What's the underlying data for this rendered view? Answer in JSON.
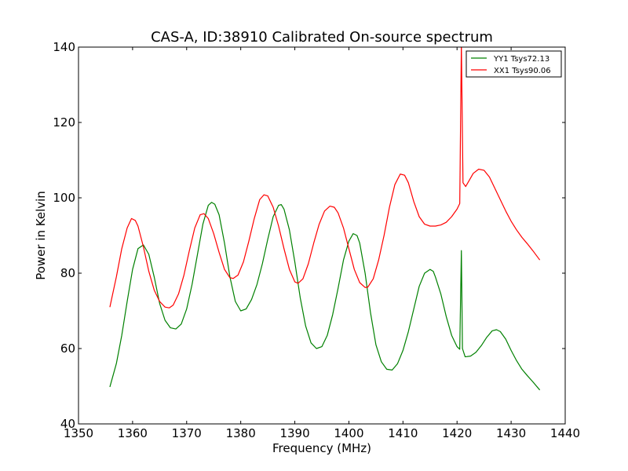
{
  "chart_data": {
    "type": "line",
    "title": "CAS-A, ID:38910 Calibrated On-source spectrum",
    "xlabel": "Frequency (MHz)",
    "ylabel": "Power in Kelvin",
    "xlim": [
      1350,
      1440
    ],
    "ylim": [
      40,
      140
    ],
    "xticks": [
      1350,
      1360,
      1370,
      1380,
      1390,
      1400,
      1410,
      1420,
      1430,
      1440
    ],
    "yticks": [
      40,
      60,
      80,
      100,
      120,
      140
    ],
    "grid": false,
    "legend_position": "top-right",
    "series": [
      {
        "name": "YY1 Tsys72.13",
        "color": "#008000",
        "points": [
          [
            1355.8,
            49.8
          ],
          [
            1357.0,
            56.0
          ],
          [
            1358.0,
            63.5
          ],
          [
            1359.0,
            72.5
          ],
          [
            1360.0,
            81.0
          ],
          [
            1361.0,
            86.5
          ],
          [
            1362.0,
            87.5
          ],
          [
            1363.0,
            85.0
          ],
          [
            1364.0,
            79.0
          ],
          [
            1365.0,
            72.0
          ],
          [
            1366.0,
            67.5
          ],
          [
            1367.0,
            65.5
          ],
          [
            1368.0,
            65.2
          ],
          [
            1369.0,
            66.5
          ],
          [
            1370.0,
            70.5
          ],
          [
            1371.0,
            77.0
          ],
          [
            1372.0,
            85.0
          ],
          [
            1373.0,
            93.0
          ],
          [
            1374.0,
            98.0
          ],
          [
            1374.6,
            98.8
          ],
          [
            1375.2,
            98.3
          ],
          [
            1376.0,
            95.5
          ],
          [
            1377.0,
            88.0
          ],
          [
            1378.0,
            79.0
          ],
          [
            1379.0,
            72.5
          ],
          [
            1380.0,
            70.0
          ],
          [
            1381.0,
            70.5
          ],
          [
            1382.0,
            73.0
          ],
          [
            1383.0,
            77.0
          ],
          [
            1384.0,
            82.5
          ],
          [
            1385.0,
            89.0
          ],
          [
            1386.0,
            95.0
          ],
          [
            1387.0,
            98.0
          ],
          [
            1387.5,
            98.2
          ],
          [
            1388.0,
            97.0
          ],
          [
            1389.0,
            91.5
          ],
          [
            1390.0,
            83.0
          ],
          [
            1391.0,
            73.5
          ],
          [
            1392.0,
            66.0
          ],
          [
            1393.0,
            61.5
          ],
          [
            1394.0,
            60.0
          ],
          [
            1395.0,
            60.5
          ],
          [
            1396.0,
            63.5
          ],
          [
            1397.0,
            69.0
          ],
          [
            1398.0,
            76.0
          ],
          [
            1399.0,
            83.5
          ],
          [
            1400.0,
            88.5
          ],
          [
            1400.8,
            90.5
          ],
          [
            1401.5,
            90.0
          ],
          [
            1402.0,
            88.0
          ],
          [
            1403.0,
            80.0
          ],
          [
            1404.0,
            69.5
          ],
          [
            1405.0,
            61.0
          ],
          [
            1406.0,
            56.5
          ],
          [
            1407.0,
            54.5
          ],
          [
            1408.0,
            54.3
          ],
          [
            1409.0,
            56.0
          ],
          [
            1410.0,
            59.5
          ],
          [
            1411.0,
            64.5
          ],
          [
            1412.0,
            70.5
          ],
          [
            1413.0,
            76.5
          ],
          [
            1414.0,
            80.0
          ],
          [
            1415.0,
            81.0
          ],
          [
            1415.6,
            80.5
          ],
          [
            1416.0,
            79.0
          ],
          [
            1417.0,
            74.5
          ],
          [
            1418.0,
            68.5
          ],
          [
            1419.0,
            63.5
          ],
          [
            1420.0,
            60.5
          ],
          [
            1420.5,
            59.8
          ],
          [
            1420.8,
            86.0
          ],
          [
            1421.0,
            60.0
          ],
          [
            1421.5,
            57.8
          ],
          [
            1422.5,
            58.0
          ],
          [
            1423.5,
            59.0
          ],
          [
            1424.5,
            60.8
          ],
          [
            1425.5,
            63.0
          ],
          [
            1426.5,
            64.7
          ],
          [
            1427.3,
            65.0
          ],
          [
            1428.0,
            64.5
          ],
          [
            1429.0,
            62.5
          ],
          [
            1430.0,
            59.5
          ],
          [
            1431.0,
            56.8
          ],
          [
            1432.0,
            54.5
          ],
          [
            1433.0,
            52.8
          ],
          [
            1434.0,
            51.2
          ],
          [
            1435.3,
            49.0
          ]
        ]
      },
      {
        "name": "XX1 Tsys90.06",
        "color": "#ff0000",
        "points": [
          [
            1355.8,
            71.0
          ],
          [
            1357.0,
            79.0
          ],
          [
            1358.0,
            86.5
          ],
          [
            1359.0,
            92.0
          ],
          [
            1359.8,
            94.5
          ],
          [
            1360.5,
            94.0
          ],
          [
            1361.0,
            92.5
          ],
          [
            1362.0,
            87.0
          ],
          [
            1363.0,
            80.5
          ],
          [
            1364.0,
            75.5
          ],
          [
            1365.0,
            72.5
          ],
          [
            1366.0,
            71.0
          ],
          [
            1366.8,
            70.8
          ],
          [
            1367.5,
            71.5
          ],
          [
            1368.5,
            74.5
          ],
          [
            1369.5,
            79.5
          ],
          [
            1370.5,
            86.0
          ],
          [
            1371.5,
            92.0
          ],
          [
            1372.5,
            95.5
          ],
          [
            1373.2,
            95.8
          ],
          [
            1374.0,
            94.5
          ],
          [
            1375.0,
            90.5
          ],
          [
            1376.0,
            85.5
          ],
          [
            1377.0,
            81.0
          ],
          [
            1378.0,
            78.8
          ],
          [
            1378.6,
            78.6
          ],
          [
            1379.5,
            79.5
          ],
          [
            1380.5,
            83.0
          ],
          [
            1381.5,
            88.5
          ],
          [
            1382.5,
            94.5
          ],
          [
            1383.5,
            99.5
          ],
          [
            1384.3,
            100.8
          ],
          [
            1385.0,
            100.5
          ],
          [
            1386.0,
            97.5
          ],
          [
            1387.0,
            92.5
          ],
          [
            1388.0,
            86.5
          ],
          [
            1389.0,
            81.0
          ],
          [
            1390.0,
            77.7
          ],
          [
            1390.6,
            77.3
          ],
          [
            1391.5,
            78.5
          ],
          [
            1392.5,
            82.5
          ],
          [
            1393.5,
            88.0
          ],
          [
            1394.5,
            93.0
          ],
          [
            1395.5,
            96.5
          ],
          [
            1396.5,
            97.8
          ],
          [
            1397.3,
            97.5
          ],
          [
            1398.0,
            96.0
          ],
          [
            1399.0,
            92.0
          ],
          [
            1400.0,
            86.5
          ],
          [
            1401.0,
            81.0
          ],
          [
            1402.0,
            77.5
          ],
          [
            1403.0,
            76.2
          ],
          [
            1403.5,
            76.3
          ],
          [
            1404.5,
            78.5
          ],
          [
            1405.5,
            83.5
          ],
          [
            1406.5,
            90.0
          ],
          [
            1407.5,
            97.5
          ],
          [
            1408.5,
            103.5
          ],
          [
            1409.5,
            106.3
          ],
          [
            1410.3,
            106.0
          ],
          [
            1411.0,
            104.0
          ],
          [
            1412.0,
            99.0
          ],
          [
            1413.0,
            95.0
          ],
          [
            1414.0,
            93.0
          ],
          [
            1415.0,
            92.5
          ],
          [
            1416.0,
            92.5
          ],
          [
            1417.0,
            92.8
          ],
          [
            1418.0,
            93.5
          ],
          [
            1419.0,
            95.0
          ],
          [
            1420.0,
            97.0
          ],
          [
            1420.5,
            98.5
          ],
          [
            1420.8,
            141.0
          ],
          [
            1421.1,
            104.0
          ],
          [
            1421.6,
            103.0
          ],
          [
            1422.0,
            104.0
          ],
          [
            1423.0,
            106.5
          ],
          [
            1424.0,
            107.6
          ],
          [
            1425.0,
            107.3
          ],
          [
            1426.0,
            105.5
          ],
          [
            1427.0,
            102.5
          ],
          [
            1428.0,
            99.5
          ],
          [
            1429.0,
            96.5
          ],
          [
            1430.0,
            93.8
          ],
          [
            1431.0,
            91.5
          ],
          [
            1432.0,
            89.5
          ],
          [
            1433.0,
            87.8
          ],
          [
            1434.0,
            86.0
          ],
          [
            1435.3,
            83.5
          ]
        ]
      }
    ]
  }
}
